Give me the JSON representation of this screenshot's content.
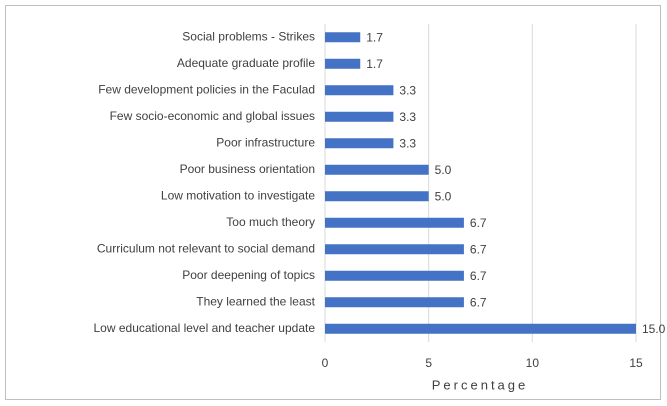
{
  "chart_data": {
    "type": "bar",
    "orientation": "horizontal",
    "x_label": "Percentage",
    "categories": [
      "Social problems - Strikes",
      "Adequate graduate profile",
      "Few development policies in the Faculad",
      "Few socio-economic and global issues",
      "Poor infrastructure",
      "Poor business orientation",
      "Low motivation to investigate",
      "Too much theory",
      "Curriculum not relevant to social demand",
      "Poor deepening of topics",
      "They learned the least",
      "Low educational level and teacher update"
    ],
    "values": [
      1.7,
      1.7,
      3.3,
      3.3,
      3.3,
      5.0,
      5.0,
      6.7,
      6.7,
      6.7,
      6.7,
      15.0
    ],
    "value_labels": [
      "1.7",
      "1.7",
      "3.3",
      "3.3",
      "3.3",
      "5.0",
      "5.0",
      "6.7",
      "6.7",
      "6.7",
      "6.7",
      "15.0"
    ],
    "color": "#4472c4",
    "xlim": [
      0,
      15
    ],
    "xticks": [
      0,
      5,
      10,
      15
    ],
    "grid": true
  }
}
